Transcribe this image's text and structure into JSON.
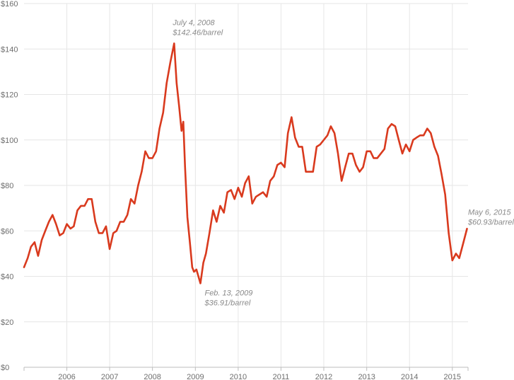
{
  "chart_data": {
    "type": "line",
    "title": "",
    "xlabel": "",
    "ylabel": "",
    "ylim": [
      0,
      160
    ],
    "xlim": [
      "2005-01-01",
      "2015-05-15"
    ],
    "grid": true,
    "y_ticks": [
      {
        "value": 0,
        "label": "$0"
      },
      {
        "value": 20,
        "label": "$20"
      },
      {
        "value": 40,
        "label": "$40"
      },
      {
        "value": 60,
        "label": "$60"
      },
      {
        "value": 80,
        "label": "$80"
      },
      {
        "value": 100,
        "label": "$100"
      },
      {
        "value": 120,
        "label": "$120"
      },
      {
        "value": 140,
        "label": "$140"
      },
      {
        "value": 160,
        "label": "$160"
      }
    ],
    "x_ticks": [
      {
        "value": "2006-01-01",
        "label": "2006"
      },
      {
        "value": "2007-01-01",
        "label": "2007"
      },
      {
        "value": "2008-01-01",
        "label": "2008"
      },
      {
        "value": "2009-01-01",
        "label": "2009"
      },
      {
        "value": "2010-01-01",
        "label": "2010"
      },
      {
        "value": "2011-01-01",
        "label": "2011"
      },
      {
        "value": "2012-01-01",
        "label": "2012"
      },
      {
        "value": "2013-01-01",
        "label": "2013"
      },
      {
        "value": "2014-01-01",
        "label": "2014"
      },
      {
        "value": "2015-01-01",
        "label": "2015"
      }
    ],
    "series": [
      {
        "color": "#d93a1e",
        "points": [
          [
            "2005-01-01",
            44
          ],
          [
            "2005-02-01",
            48
          ],
          [
            "2005-03-01",
            53
          ],
          [
            "2005-04-01",
            55
          ],
          [
            "2005-05-01",
            49
          ],
          [
            "2005-06-01",
            56
          ],
          [
            "2005-07-01",
            60
          ],
          [
            "2005-08-01",
            64
          ],
          [
            "2005-09-01",
            67
          ],
          [
            "2005-10-01",
            63
          ],
          [
            "2005-11-01",
            58
          ],
          [
            "2005-12-01",
            59
          ],
          [
            "2006-01-01",
            63
          ],
          [
            "2006-02-01",
            61
          ],
          [
            "2006-03-01",
            62
          ],
          [
            "2006-04-01",
            69
          ],
          [
            "2006-05-01",
            71
          ],
          [
            "2006-06-01",
            71
          ],
          [
            "2006-07-01",
            74
          ],
          [
            "2006-08-01",
            74
          ],
          [
            "2006-09-01",
            64
          ],
          [
            "2006-10-01",
            59
          ],
          [
            "2006-11-01",
            59
          ],
          [
            "2006-12-01",
            62
          ],
          [
            "2007-01-01",
            52
          ],
          [
            "2007-02-01",
            59
          ],
          [
            "2007-03-01",
            60
          ],
          [
            "2007-04-01",
            64
          ],
          [
            "2007-05-01",
            64
          ],
          [
            "2007-06-01",
            67
          ],
          [
            "2007-07-01",
            74
          ],
          [
            "2007-08-01",
            72
          ],
          [
            "2007-09-01",
            80
          ],
          [
            "2007-10-01",
            86
          ],
          [
            "2007-11-01",
            95
          ],
          [
            "2007-12-01",
            92
          ],
          [
            "2008-01-01",
            92
          ],
          [
            "2008-02-01",
            95
          ],
          [
            "2008-03-01",
            105
          ],
          [
            "2008-04-01",
            112
          ],
          [
            "2008-05-01",
            125
          ],
          [
            "2008-06-01",
            134
          ],
          [
            "2008-07-04",
            142.46
          ],
          [
            "2008-07-25",
            125
          ],
          [
            "2008-08-15",
            115
          ],
          [
            "2008-09-05",
            104
          ],
          [
            "2008-09-20",
            108
          ],
          [
            "2008-10-05",
            88
          ],
          [
            "2008-10-25",
            66
          ],
          [
            "2008-11-15",
            55
          ],
          [
            "2008-12-05",
            44
          ],
          [
            "2008-12-20",
            42
          ],
          [
            "2009-01-10",
            43
          ],
          [
            "2009-02-13",
            36.91
          ],
          [
            "2009-03-10",
            46
          ],
          [
            "2009-04-01",
            50
          ],
          [
            "2009-05-01",
            59
          ],
          [
            "2009-06-01",
            69
          ],
          [
            "2009-07-01",
            64
          ],
          [
            "2009-08-01",
            71
          ],
          [
            "2009-09-01",
            68
          ],
          [
            "2009-10-01",
            77
          ],
          [
            "2009-11-01",
            78
          ],
          [
            "2009-12-01",
            74
          ],
          [
            "2010-01-01",
            79
          ],
          [
            "2010-02-01",
            75
          ],
          [
            "2010-03-01",
            81
          ],
          [
            "2010-04-01",
            84
          ],
          [
            "2010-05-01",
            72
          ],
          [
            "2010-06-01",
            75
          ],
          [
            "2010-07-01",
            76
          ],
          [
            "2010-08-01",
            77
          ],
          [
            "2010-09-01",
            75
          ],
          [
            "2010-10-01",
            82
          ],
          [
            "2010-11-01",
            84
          ],
          [
            "2010-12-01",
            89
          ],
          [
            "2011-01-01",
            90
          ],
          [
            "2011-02-01",
            88
          ],
          [
            "2011-03-01",
            103
          ],
          [
            "2011-04-01",
            110
          ],
          [
            "2011-05-01",
            101
          ],
          [
            "2011-06-01",
            97
          ],
          [
            "2011-07-01",
            97
          ],
          [
            "2011-08-01",
            86
          ],
          [
            "2011-09-01",
            86
          ],
          [
            "2011-10-01",
            86
          ],
          [
            "2011-11-01",
            97
          ],
          [
            "2011-12-01",
            98
          ],
          [
            "2012-01-01",
            100
          ],
          [
            "2012-02-01",
            102
          ],
          [
            "2012-03-01",
            106
          ],
          [
            "2012-04-01",
            103
          ],
          [
            "2012-05-01",
            94
          ],
          [
            "2012-06-01",
            82
          ],
          [
            "2012-07-01",
            88
          ],
          [
            "2012-08-01",
            94
          ],
          [
            "2012-09-01",
            94
          ],
          [
            "2012-10-01",
            89
          ],
          [
            "2012-11-01",
            86
          ],
          [
            "2012-12-01",
            88
          ],
          [
            "2013-01-01",
            95
          ],
          [
            "2013-02-01",
            95
          ],
          [
            "2013-03-01",
            92
          ],
          [
            "2013-04-01",
            92
          ],
          [
            "2013-05-01",
            94
          ],
          [
            "2013-06-01",
            96
          ],
          [
            "2013-07-01",
            105
          ],
          [
            "2013-08-01",
            107
          ],
          [
            "2013-09-01",
            106
          ],
          [
            "2013-10-01",
            100
          ],
          [
            "2013-11-01",
            94
          ],
          [
            "2013-12-01",
            98
          ],
          [
            "2014-01-01",
            95
          ],
          [
            "2014-02-01",
            100
          ],
          [
            "2014-03-01",
            101
          ],
          [
            "2014-04-01",
            102
          ],
          [
            "2014-05-01",
            102
          ],
          [
            "2014-06-01",
            105
          ],
          [
            "2014-07-01",
            103
          ],
          [
            "2014-08-01",
            97
          ],
          [
            "2014-09-01",
            93
          ],
          [
            "2014-10-01",
            85
          ],
          [
            "2014-11-01",
            76
          ],
          [
            "2014-12-01",
            59
          ],
          [
            "2015-01-01",
            47
          ],
          [
            "2015-02-01",
            50
          ],
          [
            "2015-03-01",
            48
          ],
          [
            "2015-04-01",
            54
          ],
          [
            "2015-05-06",
            60.93
          ]
        ]
      }
    ],
    "annotations": [
      {
        "date": "2008-07-04",
        "value": 142.46,
        "line1": "July 4, 2008",
        "line2": "$142.46/barrel"
      },
      {
        "date": "2009-02-13",
        "value": 36.91,
        "line1": "Feb. 13, 2009",
        "line2": "$36.91/barrel"
      },
      {
        "date": "2015-05-06",
        "value": 60.93,
        "line1": "May 6, 2015",
        "line2": "$60.93/barrel"
      }
    ]
  }
}
